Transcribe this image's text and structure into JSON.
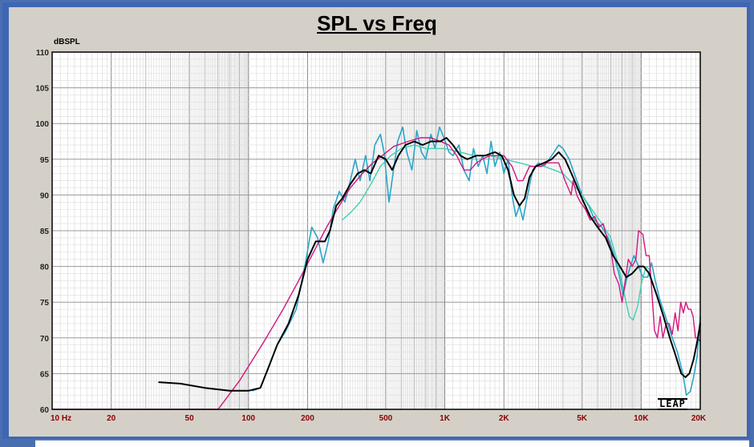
{
  "chart_data": {
    "type": "line",
    "title": "SPL vs Freq",
    "ylabel": "dBSPL",
    "xlabel": "",
    "xscale": "log",
    "xlim": [
      10,
      20000
    ],
    "ylim": [
      60,
      110
    ],
    "yticks": [
      "60",
      "65",
      "70",
      "75",
      "80",
      "85",
      "90",
      "95",
      "100",
      "105",
      "110"
    ],
    "xticks": [
      {
        "f": 10,
        "label": "10 Hz"
      },
      {
        "f": 20,
        "label": "20"
      },
      {
        "f": 50,
        "label": "50"
      },
      {
        "f": 100,
        "label": "100"
      },
      {
        "f": 200,
        "label": "200"
      },
      {
        "f": 500,
        "label": "500"
      },
      {
        "f": 1000,
        "label": "1K"
      },
      {
        "f": 2000,
        "label": "2K"
      },
      {
        "f": 5000,
        "label": "5K"
      },
      {
        "f": 10000,
        "label": "10K"
      },
      {
        "f": 20000,
        "label": "20K"
      }
    ],
    "grid": true,
    "series": [
      {
        "color": "#2aa6c8",
        "width": 1.6,
        "points": [
          [
            105,
            62.6
          ],
          [
            115,
            63.0
          ],
          [
            125,
            65.5
          ],
          [
            140,
            69.0
          ],
          [
            155,
            71.0
          ],
          [
            175,
            74.0
          ],
          [
            195,
            80.5
          ],
          [
            210,
            85.5
          ],
          [
            225,
            84.0
          ],
          [
            240,
            80.5
          ],
          [
            255,
            83.5
          ],
          [
            270,
            88.0
          ],
          [
            290,
            90.5
          ],
          [
            310,
            89.0
          ],
          [
            330,
            92.0
          ],
          [
            350,
            95.0
          ],
          [
            370,
            92.0
          ],
          [
            395,
            95.5
          ],
          [
            415,
            92.0
          ],
          [
            440,
            97.0
          ],
          [
            470,
            98.5
          ],
          [
            490,
            96.0
          ],
          [
            520,
            89.0
          ],
          [
            545,
            93.0
          ],
          [
            575,
            97.5
          ],
          [
            610,
            99.5
          ],
          [
            640,
            96.0
          ],
          [
            680,
            93.5
          ],
          [
            720,
            99.0
          ],
          [
            760,
            96.0
          ],
          [
            800,
            95.0
          ],
          [
            850,
            98.5
          ],
          [
            890,
            96.5
          ],
          [
            940,
            99.5
          ],
          [
            990,
            98.0
          ],
          [
            1050,
            96.0
          ],
          [
            1100,
            95.5
          ],
          [
            1180,
            97.0
          ],
          [
            1250,
            93.5
          ],
          [
            1330,
            92.0
          ],
          [
            1400,
            96.5
          ],
          [
            1480,
            94.0
          ],
          [
            1560,
            95.5
          ],
          [
            1640,
            93.0
          ],
          [
            1720,
            97.5
          ],
          [
            1800,
            94.0
          ],
          [
            1900,
            96.0
          ],
          [
            2000,
            93.0
          ],
          [
            2100,
            95.0
          ],
          [
            2200,
            90.0
          ],
          [
            2300,
            87.0
          ],
          [
            2400,
            88.5
          ],
          [
            2500,
            86.5
          ],
          [
            2600,
            89.0
          ],
          [
            2800,
            93.5
          ],
          [
            3000,
            94.5
          ],
          [
            3200,
            94.0
          ],
          [
            3400,
            95.0
          ],
          [
            3600,
            96.0
          ],
          [
            3800,
            97.0
          ],
          [
            4000,
            96.5
          ],
          [
            4300,
            95.0
          ],
          [
            4700,
            92.0
          ],
          [
            5000,
            90.0
          ],
          [
            5400,
            88.5
          ],
          [
            5800,
            86.5
          ],
          [
            6300,
            85.5
          ],
          [
            6800,
            84.0
          ],
          [
            7200,
            82.0
          ],
          [
            7700,
            79.0
          ],
          [
            8100,
            76.0
          ],
          [
            8400,
            78.0
          ],
          [
            8800,
            80.0
          ],
          [
            9200,
            81.5
          ],
          [
            9700,
            80.0
          ],
          [
            10200,
            78.5
          ],
          [
            10800,
            78.5
          ],
          [
            11300,
            80.5
          ],
          [
            11800,
            78.0
          ],
          [
            12400,
            75.5
          ],
          [
            13300,
            73.0
          ],
          [
            14200,
            70.5
          ],
          [
            15300,
            68.0
          ],
          [
            16300,
            65.0
          ],
          [
            17000,
            62.0
          ],
          [
            17800,
            62.5
          ],
          [
            18500,
            64.5
          ],
          [
            19300,
            67.5
          ],
          [
            20000,
            73.0
          ]
        ]
      },
      {
        "color": "#3fd0b0",
        "width": 1.4,
        "points": [
          [
            300,
            86.5
          ],
          [
            330,
            87.5
          ],
          [
            370,
            89.0
          ],
          [
            420,
            91.5
          ],
          [
            470,
            94.0
          ],
          [
            530,
            95.5
          ],
          [
            600,
            96.5
          ],
          [
            700,
            97.0
          ],
          [
            800,
            96.5
          ],
          [
            900,
            96.5
          ],
          [
            1000,
            96.5
          ],
          [
            1200,
            96.0
          ],
          [
            1400,
            95.5
          ],
          [
            1700,
            95.5
          ],
          [
            2000,
            95.0
          ],
          [
            2400,
            94.5
          ],
          [
            2800,
            94.0
          ],
          [
            3200,
            94.0
          ],
          [
            3600,
            93.5
          ],
          [
            4000,
            93.0
          ],
          [
            4500,
            91.5
          ],
          [
            5000,
            90.0
          ],
          [
            5600,
            88.0
          ],
          [
            6300,
            86.0
          ],
          [
            7000,
            84.0
          ],
          [
            7700,
            80.0
          ],
          [
            8300,
            75.5
          ],
          [
            8700,
            73.0
          ],
          [
            9100,
            72.5
          ],
          [
            9600,
            74.5
          ],
          [
            10100,
            78.0
          ],
          [
            10600,
            80.0
          ],
          [
            11100,
            79.5
          ]
        ]
      },
      {
        "color": "#d4147f",
        "width": 1.4,
        "points": [
          [
            10,
            60.0
          ],
          [
            70,
            60.0
          ],
          [
            90,
            64.0
          ],
          [
            120,
            69.5
          ],
          [
            150,
            74.0
          ],
          [
            180,
            78.0
          ],
          [
            210,
            81.5
          ],
          [
            250,
            85.5
          ],
          [
            290,
            88.5
          ],
          [
            330,
            91.0
          ],
          [
            380,
            93.0
          ],
          [
            430,
            94.5
          ],
          [
            480,
            95.5
          ],
          [
            550,
            96.8
          ],
          [
            650,
            97.5
          ],
          [
            750,
            98.0
          ],
          [
            850,
            98.0
          ],
          [
            950,
            97.5
          ],
          [
            1050,
            97.0
          ],
          [
            1150,
            95.5
          ],
          [
            1250,
            93.5
          ],
          [
            1350,
            93.5
          ],
          [
            1450,
            94.5
          ],
          [
            1550,
            95.0
          ],
          [
            1700,
            95.5
          ],
          [
            1850,
            95.5
          ],
          [
            2000,
            95.5
          ],
          [
            2200,
            94.0
          ],
          [
            2350,
            92.0
          ],
          [
            2500,
            92.0
          ],
          [
            2700,
            94.0
          ],
          [
            2900,
            94.0
          ],
          [
            3100,
            94.0
          ],
          [
            3300,
            94.5
          ],
          [
            3600,
            94.5
          ],
          [
            3800,
            94.5
          ],
          [
            4100,
            92.0
          ],
          [
            4400,
            90.0
          ],
          [
            4500,
            92.0
          ],
          [
            4700,
            90.0
          ],
          [
            4900,
            89.0
          ],
          [
            5200,
            88.0
          ],
          [
            5500,
            86.5
          ],
          [
            5800,
            87.0
          ],
          [
            6100,
            85.5
          ],
          [
            6400,
            86.0
          ],
          [
            6700,
            84.0
          ],
          [
            7000,
            82.5
          ],
          [
            7300,
            79.0
          ],
          [
            7700,
            77.5
          ],
          [
            8000,
            75.0
          ],
          [
            8300,
            78.0
          ],
          [
            8600,
            81.0
          ],
          [
            9000,
            80.0
          ],
          [
            9400,
            81.0
          ],
          [
            9700,
            85.0
          ],
          [
            10200,
            84.5
          ],
          [
            10600,
            81.5
          ],
          [
            11000,
            81.5
          ],
          [
            11300,
            77.0
          ],
          [
            11700,
            71.0
          ],
          [
            12100,
            70.0
          ],
          [
            12500,
            73.0
          ],
          [
            12900,
            70.0
          ],
          [
            13400,
            72.0
          ],
          [
            13900,
            72.0
          ],
          [
            14400,
            70.5
          ],
          [
            14900,
            73.5
          ],
          [
            15400,
            71.0
          ],
          [
            15900,
            75.0
          ],
          [
            16400,
            73.5
          ],
          [
            16900,
            75.0
          ],
          [
            17400,
            74.0
          ],
          [
            17900,
            74.0
          ],
          [
            18400,
            73.0
          ],
          [
            18900,
            70.0
          ],
          [
            19400,
            70.0
          ],
          [
            20000,
            69.5
          ]
        ]
      },
      {
        "color": "#000000",
        "width": 2.0,
        "points": [
          [
            35,
            63.8
          ],
          [
            45,
            63.6
          ],
          [
            60,
            63.0
          ],
          [
            80,
            62.6
          ],
          [
            100,
            62.6
          ],
          [
            115,
            63.0
          ],
          [
            125,
            65.5
          ],
          [
            140,
            69.0
          ],
          [
            160,
            72.0
          ],
          [
            180,
            76.0
          ],
          [
            200,
            81.0
          ],
          [
            220,
            83.5
          ],
          [
            245,
            83.5
          ],
          [
            260,
            85.0
          ],
          [
            280,
            88.5
          ],
          [
            300,
            89.5
          ],
          [
            330,
            91.5
          ],
          [
            360,
            93.0
          ],
          [
            390,
            93.5
          ],
          [
            420,
            93.0
          ],
          [
            460,
            95.5
          ],
          [
            500,
            95.0
          ],
          [
            540,
            93.5
          ],
          [
            580,
            95.5
          ],
          [
            630,
            97.0
          ],
          [
            700,
            97.5
          ],
          [
            770,
            97.0
          ],
          [
            850,
            97.5
          ],
          [
            950,
            97.5
          ],
          [
            1020,
            98.0
          ],
          [
            1100,
            97.0
          ],
          [
            1200,
            95.5
          ],
          [
            1300,
            95.0
          ],
          [
            1450,
            95.5
          ],
          [
            1600,
            95.5
          ],
          [
            1800,
            96.0
          ],
          [
            1950,
            95.5
          ],
          [
            2100,
            93.5
          ],
          [
            2250,
            90.0
          ],
          [
            2400,
            88.5
          ],
          [
            2550,
            89.5
          ],
          [
            2700,
            92.5
          ],
          [
            2900,
            94.0
          ],
          [
            3200,
            94.5
          ],
          [
            3500,
            95.0
          ],
          [
            3800,
            96.0
          ],
          [
            4100,
            95.0
          ],
          [
            4500,
            92.5
          ],
          [
            5000,
            89.5
          ],
          [
            5500,
            87.0
          ],
          [
            6000,
            85.5
          ],
          [
            6600,
            84.0
          ],
          [
            7200,
            81.5
          ],
          [
            7800,
            80.0
          ],
          [
            8400,
            78.5
          ],
          [
            9000,
            79.0
          ],
          [
            9700,
            80.0
          ],
          [
            10300,
            80.0
          ],
          [
            11000,
            79.0
          ],
          [
            12000,
            76.0
          ],
          [
            13000,
            73.0
          ],
          [
            14000,
            70.0
          ],
          [
            15000,
            67.5
          ],
          [
            16000,
            65.0
          ],
          [
            16800,
            64.5
          ],
          [
            17600,
            65.0
          ],
          [
            18500,
            67.0
          ],
          [
            19300,
            69.5
          ],
          [
            20000,
            72.0
          ]
        ]
      }
    ]
  },
  "logo": "LEAP"
}
